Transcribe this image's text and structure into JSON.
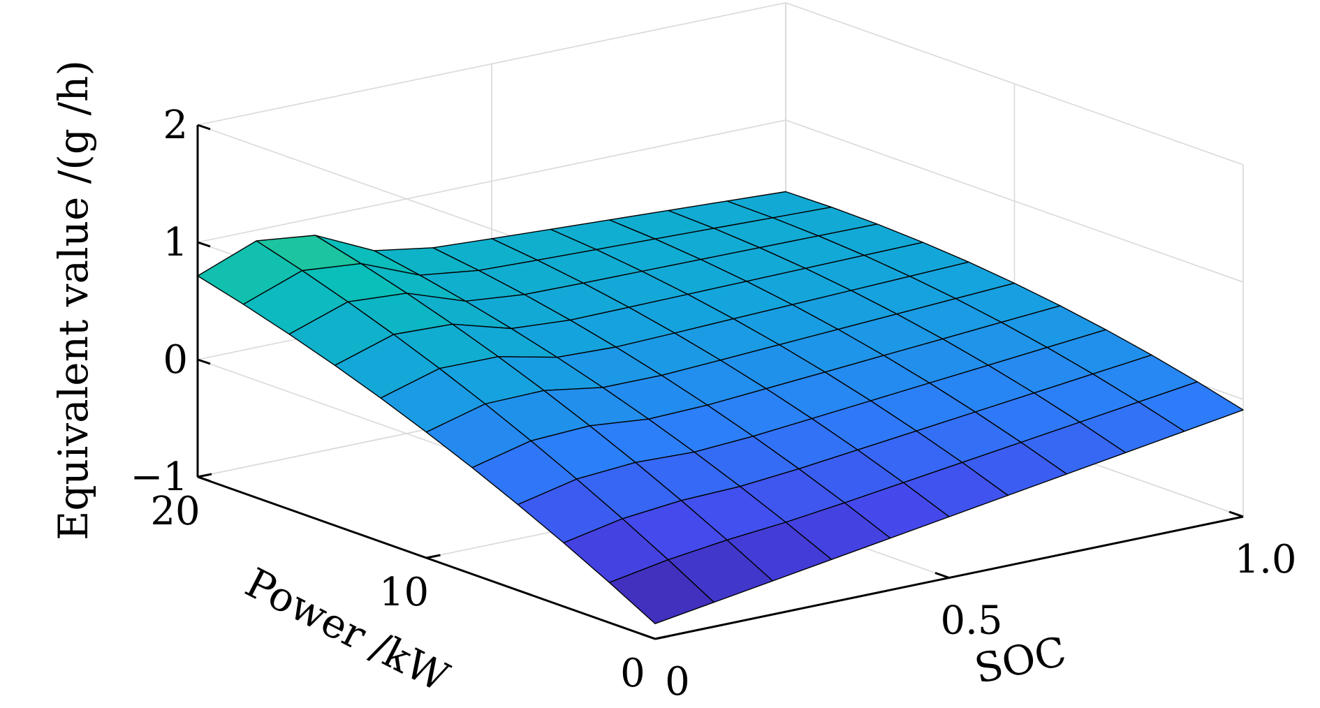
{
  "chart_data": {
    "type": "surface",
    "xlabel": "SOC",
    "ylabel": "Power /kW",
    "zlabel": "Equivalent value /(g /h)",
    "xlim": [
      0,
      1
    ],
    "ylim": [
      0,
      20
    ],
    "zlim": [
      -1,
      2
    ],
    "x_ticks": [
      "0",
      "0.5",
      "1.0"
    ],
    "y_ticks": [
      "0",
      "10",
      "20"
    ],
    "z_ticks": [
      "−1",
      "0",
      "1",
      "2"
    ],
    "x": [
      0,
      0.1,
      0.2,
      0.3,
      0.4,
      0.5,
      0.6,
      0.7,
      0.8,
      0.9,
      1.0
    ],
    "y": [
      0,
      2,
      4,
      6,
      8,
      10,
      12,
      14,
      16,
      18,
      20
    ],
    "z_formula": "z(soc,P) = -0.87 + 0.105*P - 0.0015*P^2 + (0.78 - 0.051*P)*soc + 0.02*P*(1-soc)*exp(-((soc-0.15)/0.12)^2)",
    "colormap": "parula",
    "grid": true,
    "view": "3d, azimuth from +x/-y corner"
  }
}
